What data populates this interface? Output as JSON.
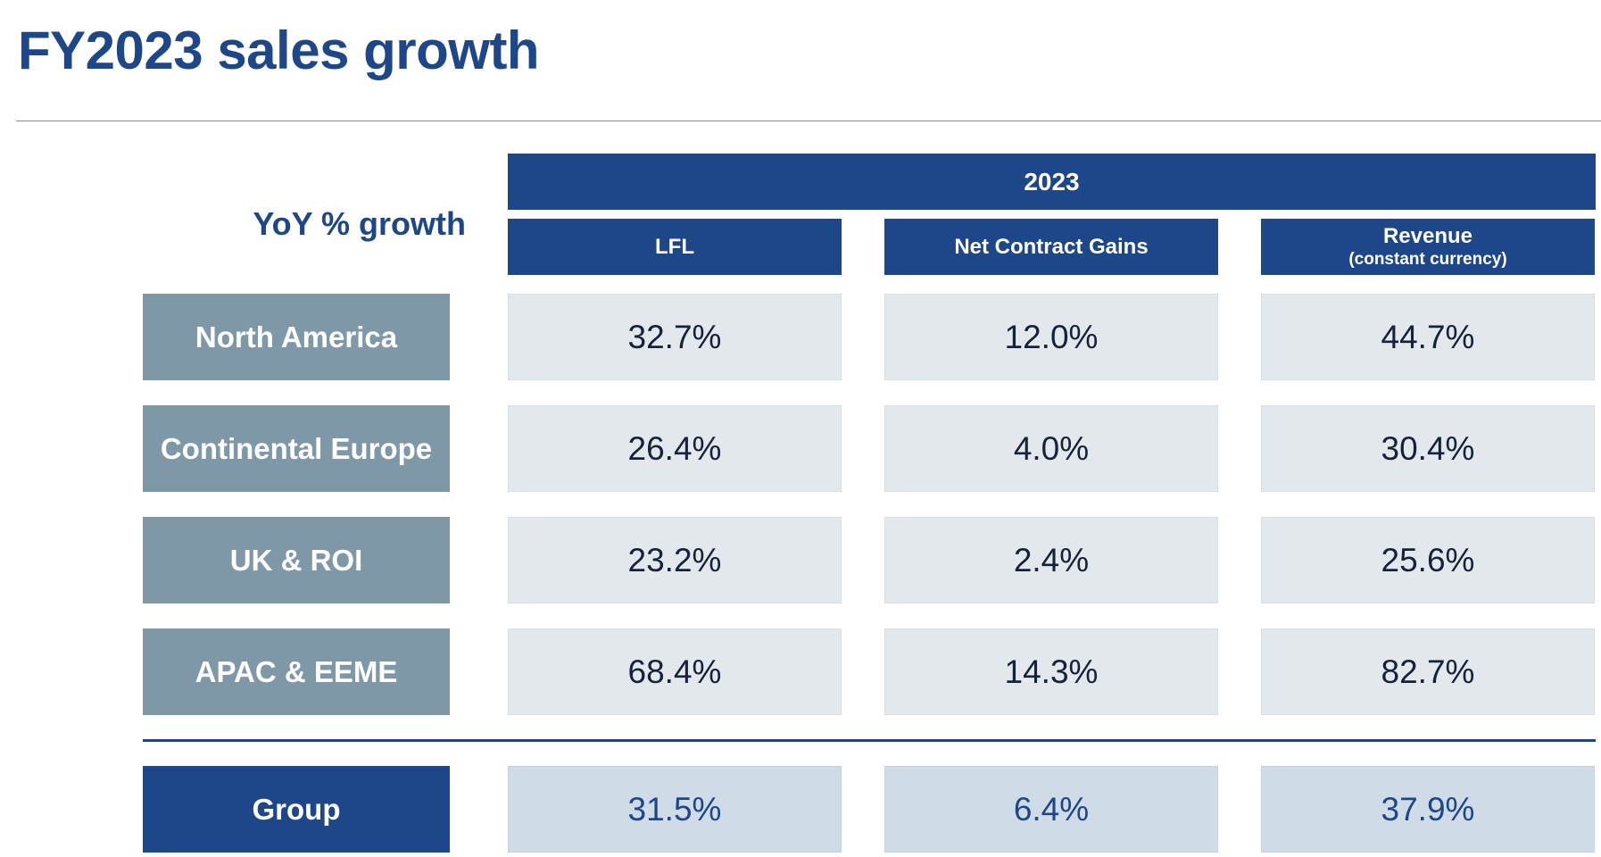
{
  "page": {
    "title": "FY2023 sales growth"
  },
  "colors": {
    "primary": "#1d4788",
    "row_label_bg": "#7f98a8",
    "cell_bg": "#e3e8ec",
    "group_cell_bg": "#cfdbe7",
    "rule": "#8a8a8a"
  },
  "chart_data": {
    "type": "table",
    "title": "FY2023 sales growth",
    "row_header_caption": "YoY % growth",
    "column_group": "2023",
    "columns": [
      {
        "label": "LFL",
        "sublabel": ""
      },
      {
        "label": "Net Contract Gains",
        "sublabel": ""
      },
      {
        "label": "Revenue",
        "sublabel": "(constant currency)"
      }
    ],
    "rows": [
      {
        "label": "North America",
        "values": [
          "32.7%",
          "12.0%",
          "44.7%"
        ]
      },
      {
        "label": "Continental Europe",
        "values": [
          "26.4%",
          "4.0%",
          "30.4%"
        ]
      },
      {
        "label": "UK & ROI",
        "values": [
          "23.2%",
          "2.4%",
          "25.6%"
        ]
      },
      {
        "label": "APAC & EEME",
        "values": [
          "68.4%",
          "14.3%",
          "82.7%"
        ]
      }
    ],
    "total_row": {
      "label": "Group",
      "values": [
        "31.5%",
        "6.4%",
        "37.9%"
      ]
    }
  }
}
